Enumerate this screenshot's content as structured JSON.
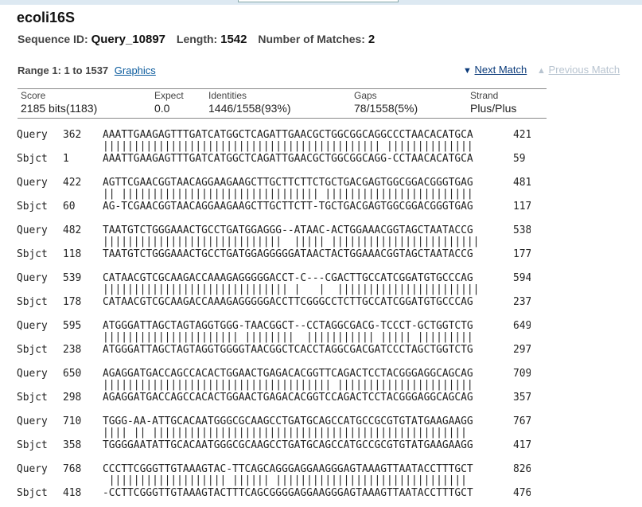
{
  "title": "ecoli16S",
  "meta": {
    "seqid_label": "Sequence ID:",
    "seqid": "Query_10897",
    "length_label": "Length:",
    "length": "1542",
    "matches_label": "Number of Matches:",
    "matches": "2"
  },
  "range": {
    "label": "Range 1: 1 to 1537",
    "graphics": "Graphics"
  },
  "nav": {
    "next": "Next Match",
    "previous": "Previous Match"
  },
  "stats": {
    "score_h": "Score",
    "score": "2185 bits(1183)",
    "expect_h": "Expect",
    "expect": "0.0",
    "ident_h": "Identities",
    "ident": "1446/1558(93%)",
    "gaps_h": "Gaps",
    "gaps": "78/1558(5%)",
    "strand_h": "Strand",
    "strand": "Plus/Plus"
  },
  "alignment": [
    {
      "qs": "362",
      "q": "AAATTGAAGAGTTTGATCATGGCTCAGATTGAACGCTGGCGGCAGGCCCTAACACATGCA",
      "qe": "421",
      "m": "||||||||||||||||||||||||||||||||||||||||||||| ||||||||||||||",
      "ss": "1",
      "s": "AAATTGAAGAGTTTGATCATGGCTCAGATTGAACGCTGGCGGCAGG-CCTAACACATGCA",
      "se": "59"
    },
    {
      "qs": "422",
      "q": "AGTTCGAACGGTAACAGGAAGAAGCTTGCTTCTTCTGCTGACGAGTGGCGGACGGGTGAG",
      "qe": "481",
      "m": "|| |||||||||||||||||||||||||||||||| ||||||||||||||||||||||||",
      "ss": "60",
      "s": "AG-TCGAACGGTAACAGGAAGAAGCTTGCTTCTT-TGCTGACGAGTGGCGGACGGGTGAG",
      "se": "117"
    },
    {
      "qs": "482",
      "q": "TAATGTCTGGGAAACTGCCTGATGGAGGG--ATAAC-ACTGGAAACGGTAGCTAATACCG",
      "qe": "538",
      "m": "|||||||||||||||||||||||||||||  ||||| ||||||||||||||||||||||||",
      "ss": "118",
      "s": "TAATGTCTGGGAAACTGCCTGATGGAGGGGGATAACTACTGGAAACGGTAGCTAATACCG",
      "se": "177"
    },
    {
      "qs": "539",
      "q": "CATAACGTCGCAAGACCAAAGAGGGGGACCT-C---CGACTTGCCATCGGATGTGCCCAG",
      "qe": "594",
      "m": "|||||||||||||||||||||||||||||| |   |  |||||||||||||||||||||||",
      "ss": "178",
      "s": "CATAACGTCGCAAGACCAAAGAGGGGGACCTTCGGGCCTCTTGCCATCGGATGTGCCCAG",
      "se": "237"
    },
    {
      "qs": "595",
      "q": "ATGGGATTAGCTAGTAGGTGGG-TAACGGCT--CCTAGGCGACG-TCCCT-GCTGGTCTG",
      "qe": "649",
      "m": "|||||||||||||||||||||| ||||||||  ||||||||||| ||||| |||||||||",
      "ss": "238",
      "s": "ATGGGATTAGCTAGTAGGTGGGGTAACGGCTCACCTAGGCGACGATCCCTAGCTGGTCTG",
      "se": "297"
    },
    {
      "qs": "650",
      "q": "AGAGGATGACCAGCCACACTGGAACTGAGACACGGTTCAGACTCCTACGGGAGGCAGCAG",
      "qe": "709",
      "m": "||||||||||||||||||||||||||||||||||||| ||||||||||||||||||||||",
      "ss": "298",
      "s": "AGAGGATGACCAGCCACACTGGAACTGAGACACGGTCCAGACTCCTACGGGAGGCAGCAG",
      "se": "357"
    },
    {
      "qs": "710",
      "q": "TGGG-AA-ATTGCACAATGGGCGCAAGCCTGATGCAGCCATGCCGCGTGTATGAAGAAGG",
      "qe": "767",
      "m": "|||| || |||||||||||||||||||||||||||||||||||||||||||||||||||",
      "ss": "358",
      "s": "TGGGGAATATTGCACAATGGGCGCAAGCCTGATGCAGCCATGCCGCGTGTATGAAGAAGG",
      "se": "417"
    },
    {
      "qs": "768",
      "q": "CCCTTCGGGTTGTAAAGTAC-TTCAGCAGGGAGGAAGGGAGTAAAGTTAATACCTTTGCT",
      "qe": "826",
      "m": " ||||||||||||||||||| |||||| |||||||||||||||||||||||||||||||",
      "ss": "418",
      "s": "-CCTTCGGGTTGTAAAGTACTTTCAGCGGGGAGGAAGGGAGTAAAGTTAATACCTTTGCT",
      "se": "476"
    }
  ]
}
